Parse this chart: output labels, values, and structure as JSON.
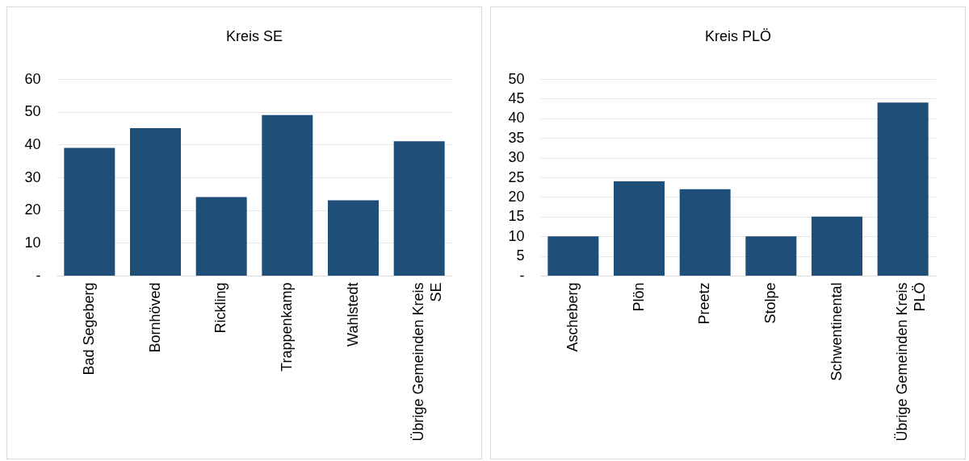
{
  "chart_data": [
    {
      "type": "bar",
      "title": "Kreis SE",
      "categories": [
        "Bad Segeberg",
        "Bornhöved",
        "Rickling",
        "Trappenkamp",
        "Wahlstedt",
        "Übrige Gemeinden Kreis SE"
      ],
      "series": [
        {
          "color": "#1f4e79",
          "values": [
            39,
            45,
            24,
            49,
            23,
            41
          ]
        }
      ],
      "ylim": [
        0,
        60
      ],
      "yticks": [
        {
          "value": 0,
          "label": "-"
        },
        10,
        20,
        30,
        40,
        50,
        60
      ],
      "grid": "y"
    },
    {
      "type": "bar",
      "title": "Kreis PLÖ",
      "categories": [
        "Ascheberg",
        "Plön",
        "Preetz",
        "Stolpe",
        "Schwentinental",
        "Übrige Gemeinden Kreis PLÖ"
      ],
      "series": [
        {
          "color": "#1f4e79",
          "values": [
            10,
            24,
            22,
            10,
            15,
            44
          ]
        }
      ],
      "ylim": [
        0,
        50
      ],
      "yticks": [
        {
          "value": 0,
          "label": "-"
        },
        5,
        10,
        15,
        20,
        25,
        30,
        35,
        40,
        45,
        50
      ],
      "grid": "y"
    }
  ]
}
